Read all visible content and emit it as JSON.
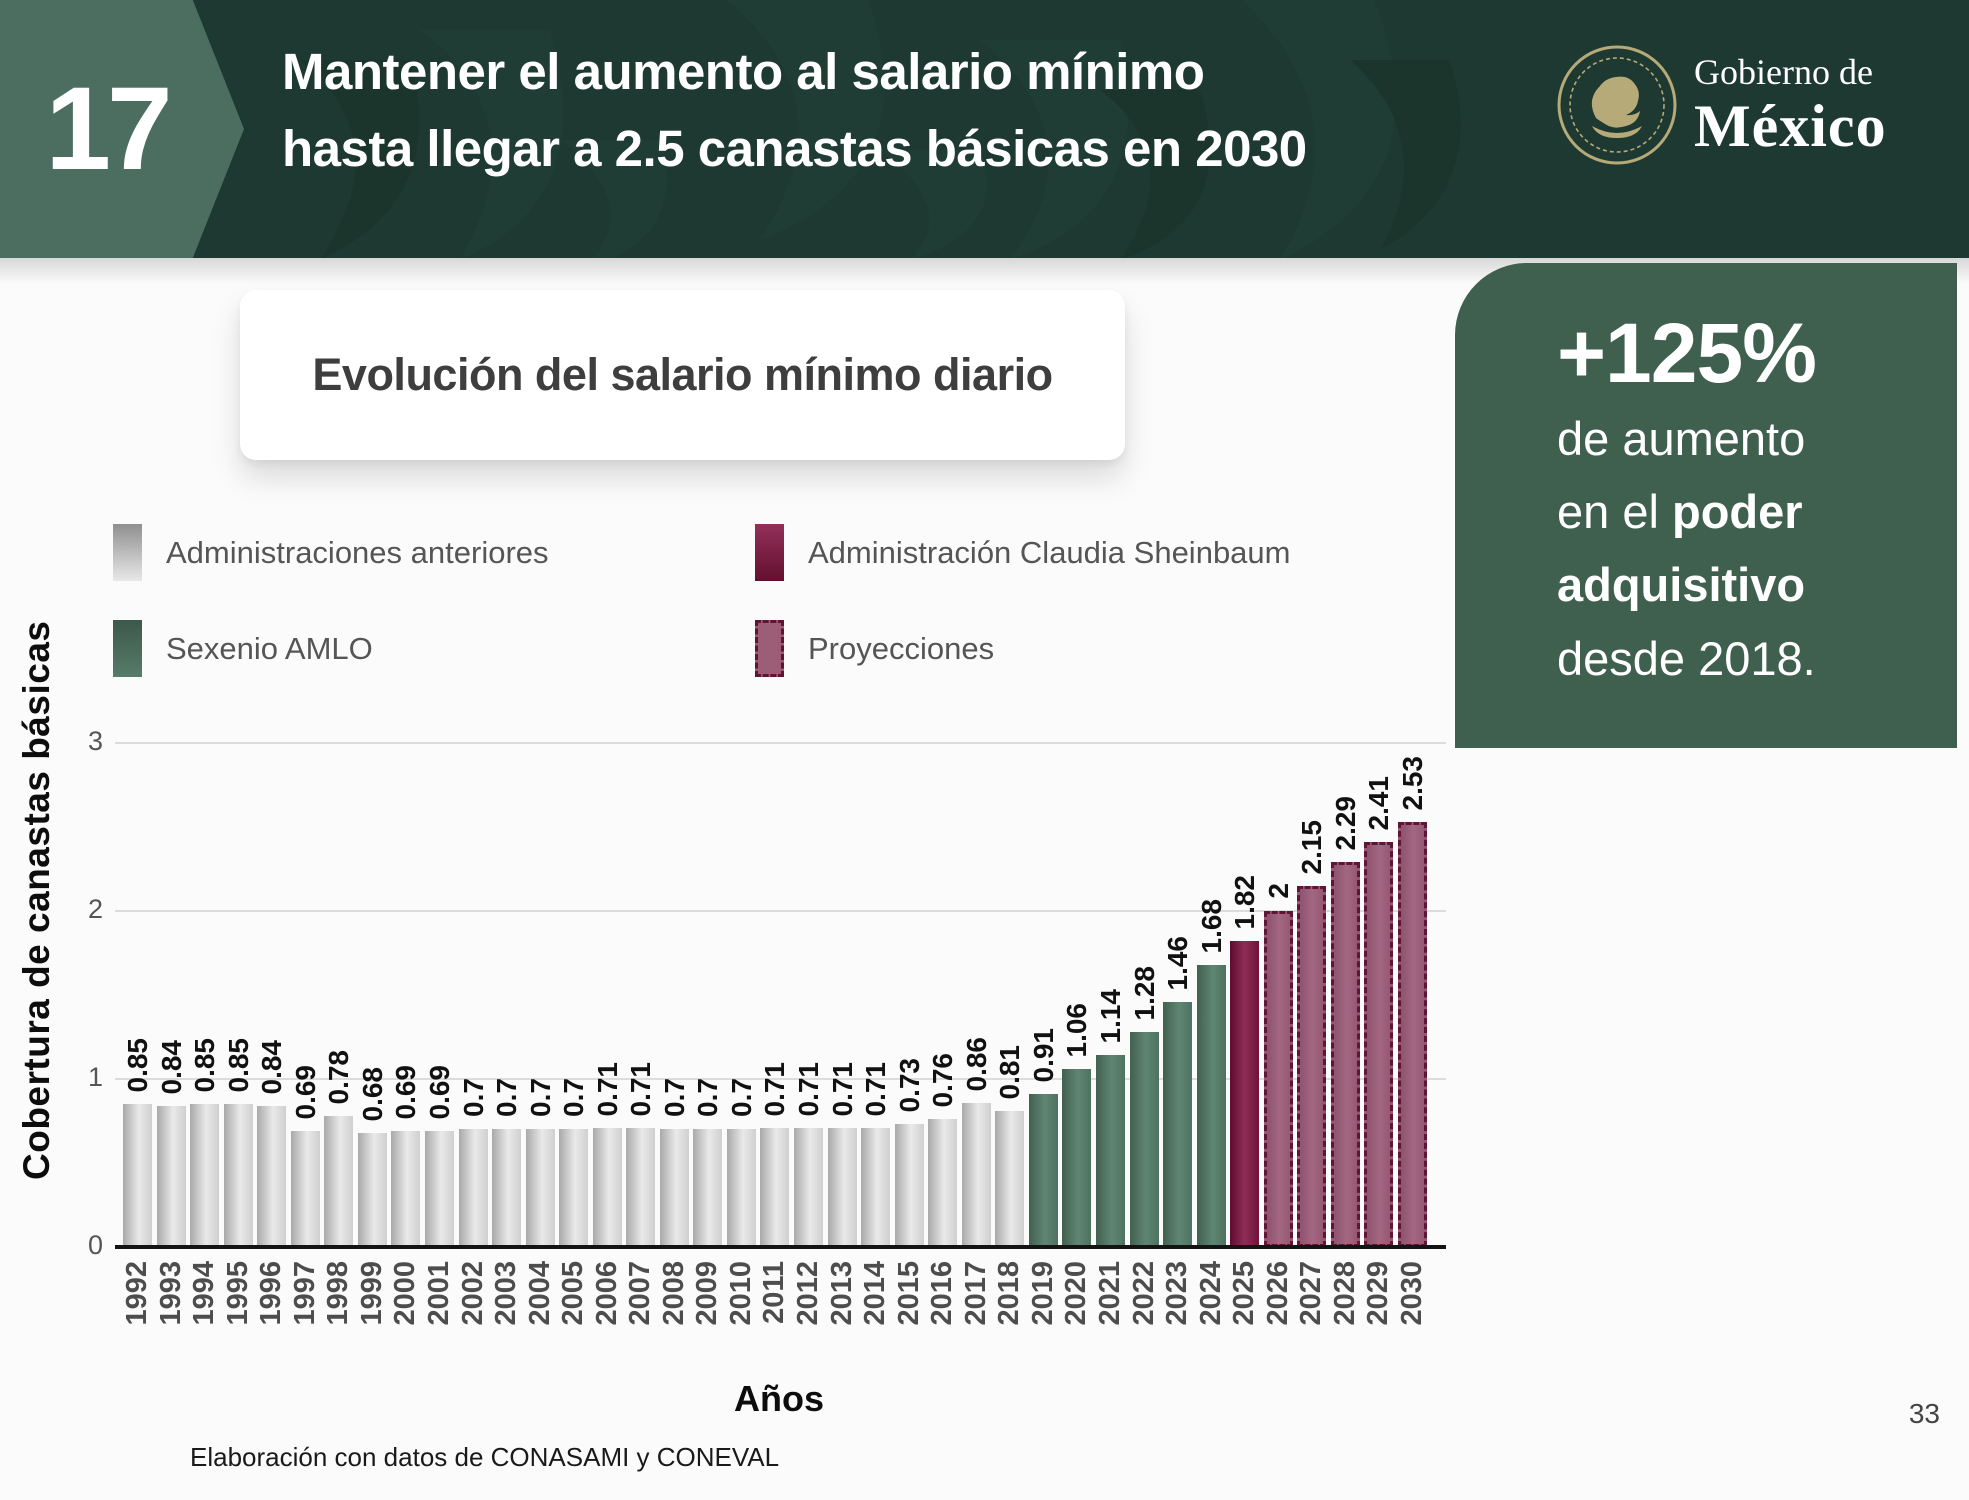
{
  "header": {
    "number": "17",
    "title_line1": "Mantener el aumento al salario mínimo",
    "title_line2": "hasta llegar a 2.5 canastas básicas en 2030",
    "logo": {
      "line1": "Gobierno de",
      "line2": "México"
    }
  },
  "chart_card": {
    "title": "Evolución del salario mínimo diario"
  },
  "legend": [
    {
      "id": "anteriores",
      "label": "Administraciones anteriores"
    },
    {
      "id": "sheinbaum",
      "label": "Administración Claudia Sheinbaum"
    },
    {
      "id": "amlo",
      "label": "Sexenio AMLO"
    },
    {
      "id": "proyecciones",
      "label": "Proyecciones"
    }
  ],
  "highlight": {
    "big": "+125%",
    "line1": "de aumento",
    "line2_pre": "en el ",
    "line2_bold": "poder",
    "line3_bold": "adquisitivo",
    "line4": "desde 2018."
  },
  "chart_data": {
    "type": "bar",
    "title": "Evolución del salario mínimo diario",
    "xlabel": "Años",
    "ylabel": "Cobertura de canastas básicas",
    "ylim": [
      0,
      3
    ],
    "yticks": [
      0,
      1,
      2,
      3
    ],
    "grid": true,
    "legend_position": "top-left",
    "categories": [
      1992,
      1993,
      1994,
      1995,
      1996,
      1997,
      1998,
      1999,
      2000,
      2001,
      2002,
      2003,
      2004,
      2005,
      2006,
      2007,
      2008,
      2009,
      2010,
      2011,
      2012,
      2013,
      2014,
      2015,
      2016,
      2017,
      2018,
      2019,
      2020,
      2021,
      2022,
      2023,
      2024,
      2025,
      2026,
      2027,
      2028,
      2029,
      2030
    ],
    "values": [
      0.85,
      0.84,
      0.85,
      0.85,
      0.84,
      0.69,
      0.78,
      0.68,
      0.69,
      0.69,
      0.7,
      0.7,
      0.7,
      0.7,
      0.71,
      0.71,
      0.7,
      0.7,
      0.7,
      0.71,
      0.71,
      0.71,
      0.71,
      0.73,
      0.76,
      0.86,
      0.81,
      0.91,
      1.06,
      1.14,
      1.28,
      1.46,
      1.68,
      1.82,
      2,
      2.15,
      2.29,
      2.41,
      2.53
    ],
    "labels": [
      "0.85",
      "0.84",
      "0.85",
      "0.85",
      "0.84",
      "0.69",
      "0.78",
      "0.68",
      "0.69",
      "0.69",
      "0.7",
      "0.7",
      "0.7",
      "0.7",
      "0.71",
      "0.71",
      "0.7",
      "0.7",
      "0.7",
      "0.71",
      "0.71",
      "0.71",
      "0.71",
      "0.73",
      "0.76",
      "0.86",
      "0.81",
      "0.91",
      "1.06",
      "1.14",
      "1.28",
      "1.46",
      "1.68",
      "1.82",
      "2",
      "2.15",
      "2.29",
      "2.41",
      "2.53"
    ],
    "groups": [
      "anteriores",
      "anteriores",
      "anteriores",
      "anteriores",
      "anteriores",
      "anteriores",
      "anteriores",
      "anteriores",
      "anteriores",
      "anteriores",
      "anteriores",
      "anteriores",
      "anteriores",
      "anteriores",
      "anteriores",
      "anteriores",
      "anteriores",
      "anteriores",
      "anteriores",
      "anteriores",
      "anteriores",
      "anteriores",
      "anteriores",
      "anteriores",
      "anteriores",
      "anteriores",
      "anteriores",
      "amlo",
      "amlo",
      "amlo",
      "amlo",
      "amlo",
      "amlo",
      "sheinbaum",
      "proyecciones",
      "proyecciones",
      "proyecciones",
      "proyecciones",
      "proyecciones"
    ],
    "group_colors": {
      "anteriores": "#c9c9c9",
      "amlo": "#527463",
      "sheinbaum": "#7a1c44",
      "proyecciones": "#9c5e77",
      "proyecciones_border": "#5f1634"
    }
  },
  "footer": {
    "source": "Elaboración con datos de CONASAMI y CONEVAL",
    "page": "33"
  }
}
